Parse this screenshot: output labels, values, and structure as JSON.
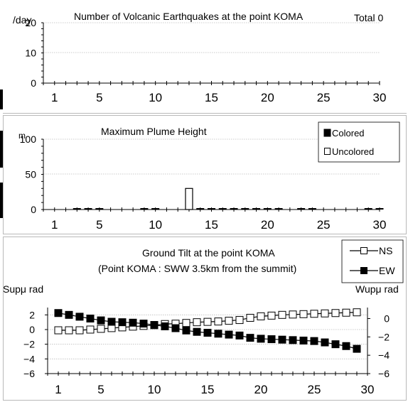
{
  "chart_data": [
    {
      "type": "bar",
      "title": "Number of Volcanic Earthquakes at the point KOMA",
      "total_label": "Total 0",
      "ylabel": "/day",
      "ylim": [
        0,
        20
      ],
      "yticks": [
        0,
        10,
        20
      ],
      "xlim": [
        0,
        30
      ],
      "xticks": [
        1,
        5,
        10,
        15,
        20,
        25,
        30
      ],
      "x": [],
      "values": [],
      "grid": true
    },
    {
      "type": "bar",
      "title": "Maximum Plume Height",
      "ylabel": "m",
      "ylim": [
        0,
        100
      ],
      "yticks": [
        0,
        50,
        100
      ],
      "xlim": [
        0,
        30
      ],
      "xticks": [
        1,
        5,
        10,
        15,
        20,
        25,
        30
      ],
      "legend_position": "top-right",
      "grid": true,
      "series": [
        {
          "name": "Colored",
          "x": [
            3,
            4,
            5,
            9,
            10,
            14,
            15,
            16,
            17,
            18,
            19,
            20,
            21,
            23,
            24,
            29,
            30
          ],
          "values": [
            0,
            0,
            0,
            0,
            0,
            0,
            0,
            0,
            0,
            0,
            0,
            0,
            0,
            0,
            0,
            0,
            0
          ]
        },
        {
          "name": "Uncolored",
          "x": [
            13
          ],
          "values": [
            30
          ]
        }
      ]
    },
    {
      "type": "line",
      "title": "Ground Tilt at the point KOMA",
      "subtitle": "(Point KOMA : SWW 3.5km from the summit)",
      "ylabel_left": "Supμ rad",
      "ylabel_right": "Wupμ rad",
      "ylim_left": [
        -6,
        3
      ],
      "yticks_left": [
        -6,
        -4,
        -2,
        0,
        2
      ],
      "ylim_right": [
        -6,
        1.2
      ],
      "yticks_right": [
        -6,
        -4,
        -2,
        0
      ],
      "xlim": [
        0,
        30
      ],
      "xticks": [
        1,
        5,
        10,
        15,
        20,
        25,
        30
      ],
      "legend_position": "top-right",
      "grid": true,
      "series": [
        {
          "name": "NS",
          "axis": "left",
          "x": [
            1,
            2,
            3,
            4,
            5,
            6,
            7,
            8,
            9,
            10,
            11,
            12,
            13,
            14,
            15,
            16,
            17,
            18,
            19,
            20,
            21,
            22,
            23,
            24,
            25,
            26,
            27,
            28,
            29
          ],
          "values": [
            -0.1,
            -0.1,
            -0.1,
            0.0,
            0.1,
            0.2,
            0.3,
            0.4,
            0.5,
            0.6,
            0.75,
            0.8,
            0.9,
            1.0,
            1.05,
            1.1,
            1.2,
            1.3,
            1.6,
            1.8,
            1.9,
            2.0,
            2.05,
            2.1,
            2.15,
            2.2,
            2.25,
            2.3,
            2.35
          ]
        },
        {
          "name": "EW",
          "axis": "right",
          "x": [
            1,
            2,
            3,
            4,
            5,
            6,
            7,
            8,
            9,
            10,
            11,
            12,
            13,
            14,
            15,
            16,
            17,
            18,
            19,
            20,
            21,
            22,
            23,
            24,
            25,
            26,
            27,
            28,
            29
          ],
          "values": [
            0.6,
            0.4,
            0.2,
            0.0,
            -0.2,
            -0.35,
            -0.4,
            -0.45,
            -0.55,
            -0.7,
            -0.85,
            -1.05,
            -1.3,
            -1.45,
            -1.55,
            -1.65,
            -1.75,
            -1.85,
            -2.1,
            -2.2,
            -2.25,
            -2.3,
            -2.35,
            -2.4,
            -2.45,
            -2.6,
            -2.8,
            -3.0,
            -3.3
          ]
        }
      ]
    }
  ]
}
